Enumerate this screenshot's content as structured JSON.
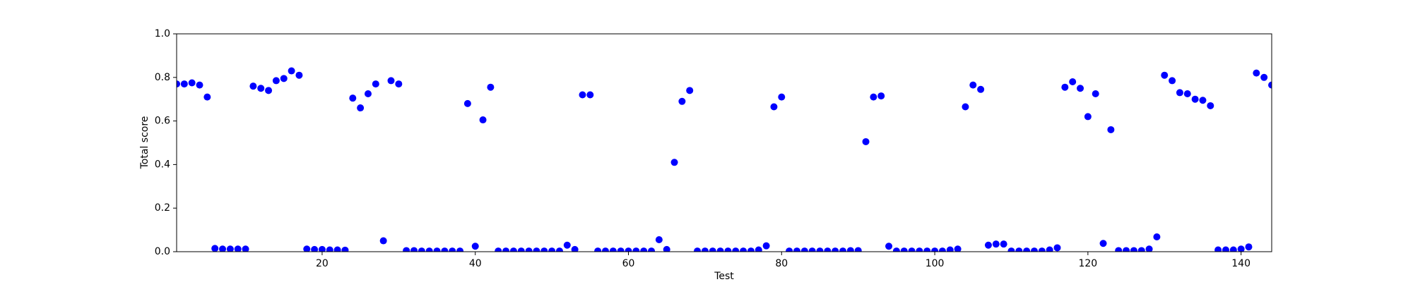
{
  "chart_data": {
    "type": "scatter",
    "x_label": "Test",
    "y_label": "Total score",
    "x": [
      1,
      2,
      3,
      4,
      5,
      6,
      7,
      8,
      9,
      10,
      11,
      12,
      13,
      14,
      15,
      16,
      17,
      18,
      19,
      20,
      21,
      22,
      23,
      24,
      25,
      26,
      27,
      28,
      29,
      30,
      31,
      32,
      33,
      34,
      35,
      36,
      37,
      38,
      39,
      40,
      41,
      42,
      43,
      44,
      45,
      46,
      47,
      48,
      49,
      50,
      51,
      52,
      53,
      54,
      55,
      56,
      57,
      58,
      59,
      60,
      61,
      62,
      63,
      64,
      65,
      66,
      67,
      68,
      69,
      70,
      71,
      72,
      73,
      74,
      75,
      76,
      77,
      78,
      79,
      80,
      81,
      82,
      83,
      84,
      85,
      86,
      87,
      88,
      89,
      90,
      91,
      92,
      93,
      94,
      95,
      96,
      97,
      98,
      99,
      100,
      101,
      102,
      103,
      104,
      105,
      106,
      107,
      108,
      109,
      110,
      111,
      112,
      113,
      114,
      115,
      116,
      117,
      118,
      119,
      120,
      121,
      122,
      123,
      124,
      125,
      126,
      127,
      128,
      129,
      130,
      131,
      132,
      133,
      134,
      135,
      136,
      137,
      138,
      139,
      140,
      141,
      142,
      143,
      144
    ],
    "series": [
      {
        "color": "#0000ff",
        "values": [
          0.77,
          0.77,
          0.775,
          0.765,
          0.71,
          0.015,
          0.012,
          0.012,
          0.012,
          0.012,
          0.76,
          0.75,
          0.74,
          0.785,
          0.795,
          0.83,
          0.81,
          0.012,
          0.01,
          0.01,
          0.008,
          0.008,
          0.007,
          0.705,
          0.66,
          0.725,
          0.77,
          0.05,
          0.785,
          0.77,
          0.005,
          0.005,
          0.003,
          0.003,
          0.003,
          0.003,
          0.003,
          0.003,
          0.68,
          0.025,
          0.605,
          0.755,
          0.003,
          0.003,
          0.003,
          0.003,
          0.003,
          0.003,
          0.003,
          0.003,
          0.003,
          0.03,
          0.01,
          0.72,
          0.72,
          0.003,
          0.003,
          0.003,
          0.003,
          0.003,
          0.003,
          0.003,
          0.003,
          0.055,
          0.01,
          0.41,
          0.69,
          0.74,
          0.003,
          0.003,
          0.003,
          0.003,
          0.003,
          0.003,
          0.003,
          0.003,
          0.008,
          0.027,
          0.665,
          0.71,
          0.003,
          0.003,
          0.003,
          0.003,
          0.003,
          0.003,
          0.003,
          0.003,
          0.005,
          0.005,
          0.505,
          0.71,
          0.715,
          0.025,
          0.003,
          0.003,
          0.003,
          0.003,
          0.003,
          0.003,
          0.003,
          0.008,
          0.012,
          0.665,
          0.765,
          0.745,
          0.03,
          0.035,
          0.035,
          0.003,
          0.003,
          0.003,
          0.003,
          0.003,
          0.008,
          0.018,
          0.755,
          0.78,
          0.75,
          0.62,
          0.725,
          0.038,
          0.56,
          0.005,
          0.005,
          0.005,
          0.005,
          0.012,
          0.068,
          0.81,
          0.785,
          0.73,
          0.725,
          0.7,
          0.695,
          0.67,
          0.008,
          0.008,
          0.008,
          0.012,
          0.022,
          0.82,
          0.8,
          0.765
        ]
      }
    ],
    "xlim": [
      1,
      144
    ],
    "xticks": [
      20,
      40,
      60,
      80,
      100,
      120,
      140
    ],
    "ylim": [
      0,
      1
    ],
    "yticks": [
      {
        "value": 0,
        "label": "0.0"
      },
      {
        "value": 0.2,
        "label": "0.2"
      },
      {
        "value": 0.4,
        "label": "0.4"
      },
      {
        "value": 0.6,
        "label": "0.6"
      },
      {
        "value": 0.8,
        "label": "0.8"
      },
      {
        "value": 1,
        "label": "1.0"
      }
    ]
  }
}
